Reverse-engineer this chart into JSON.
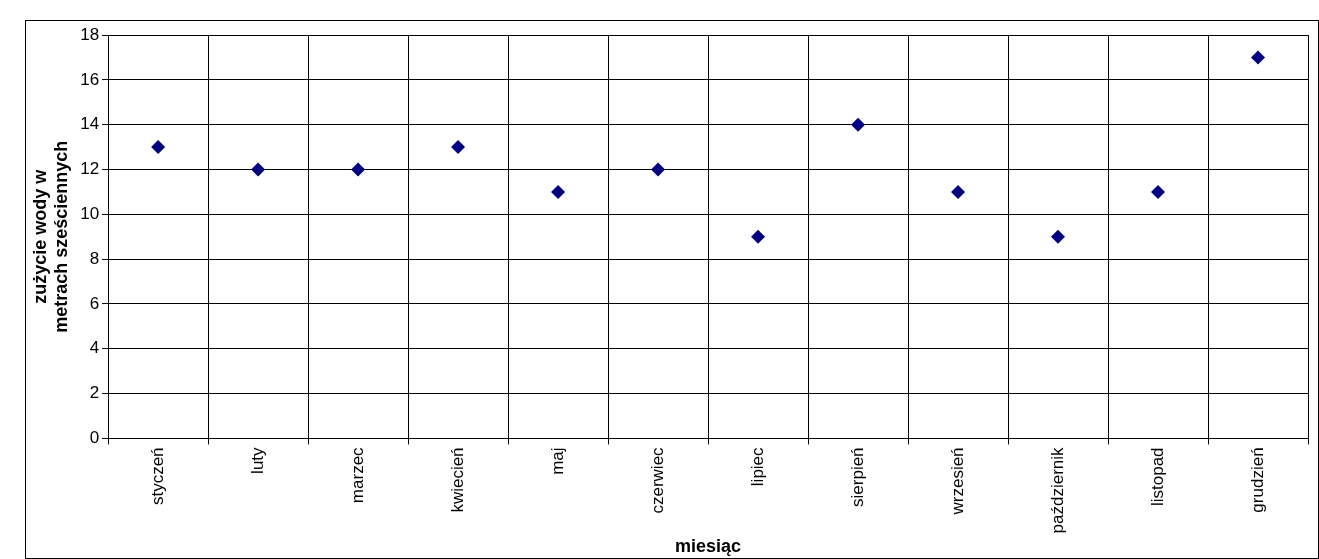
{
  "chart_data": {
    "type": "scatter",
    "xlabel": "miesiąc",
    "ylabel": "zużycie wody w metrach sześciennych",
    "categories": [
      "styczeń",
      "luty",
      "marzec",
      "kwiecień",
      "maj",
      "czerwiec",
      "lipiec",
      "sierpień",
      "wrzesień",
      "październik",
      "listopad",
      "grudzień"
    ],
    "values": [
      13,
      12,
      12,
      13,
      11,
      12,
      9,
      14,
      11,
      9,
      11,
      17
    ],
    "color": "#000080",
    "marker": "diamond",
    "ylim": [
      0,
      18
    ],
    "yticks": [
      0,
      2,
      4,
      6,
      8,
      10,
      12,
      14,
      16,
      18
    ],
    "grid": true,
    "legend": false
  }
}
